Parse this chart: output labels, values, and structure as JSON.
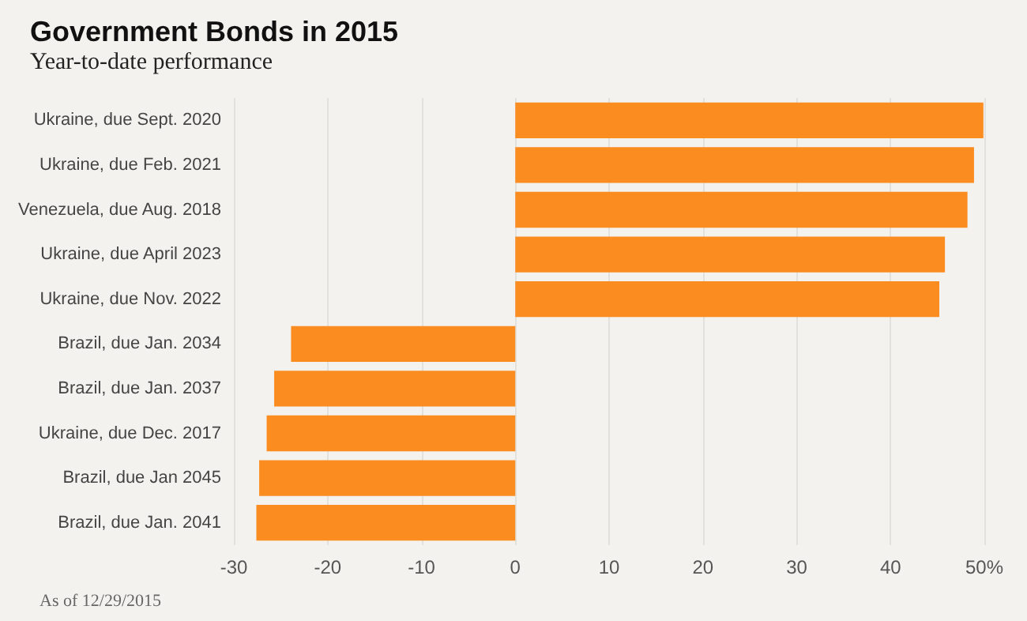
{
  "chart_data": {
    "type": "bar",
    "orientation": "horizontal",
    "title": "Government Bonds in 2015",
    "subtitle": "Year-to-date performance",
    "categories": [
      "Ukraine, due Sept. 2020",
      "Ukraine, due Feb. 2021",
      "Venezuela, due Aug. 2018",
      "Ukraine, due April 2023",
      "Ukraine, due Nov. 2022",
      "Brazil, due Jan. 2034",
      "Brazil, due Jan. 2037",
      "Ukraine, due Dec. 2017",
      "Brazil, due Jan 2045",
      "Brazil, due Jan. 2041"
    ],
    "values": [
      49.9,
      48.9,
      48.2,
      45.8,
      45.2,
      -23.9,
      -25.7,
      -26.5,
      -27.3,
      -27.6
    ],
    "color": "#fa8c20",
    "xlim": [
      -30,
      50
    ],
    "xticks": [
      -30,
      -20,
      -10,
      0,
      10,
      20,
      30,
      40,
      {
        "value": 50,
        "label": "50%"
      }
    ],
    "grid": "x",
    "annotations": [
      "As of 12/29/2015"
    ]
  }
}
